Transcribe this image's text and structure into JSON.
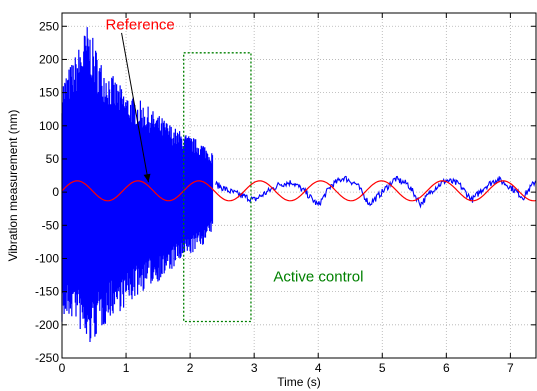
{
  "chart_data": {
    "type": "line",
    "xlabel": "Time (s)",
    "ylabel": "Vibration measurement (nm)",
    "xlim": [
      0,
      7.4
    ],
    "ylim": [
      -250,
      270
    ],
    "xticks": [
      0,
      1,
      2,
      3,
      4,
      5,
      6,
      7
    ],
    "yticks": [
      -250,
      -200,
      -150,
      -100,
      -50,
      0,
      50,
      100,
      150,
      200,
      250
    ],
    "grid": true,
    "colors": {
      "measurement": "#0000ff",
      "reference": "#ff0000",
      "active_control": "#008000"
    },
    "series": [
      {
        "name": "",
        "kind": "measurement",
        "envelope_before_control": {
          "x": [
            0,
            0.2,
            0.4,
            0.6,
            0.8,
            1.0,
            1.2,
            1.4,
            1.6,
            1.8,
            2.0,
            2.2,
            2.35
          ],
          "upper": [
            170,
            205,
            255,
            200,
            175,
            150,
            140,
            125,
            110,
            95,
            85,
            75,
            60
          ],
          "lower": [
            -200,
            -190,
            -240,
            -210,
            -185,
            -175,
            -155,
            -140,
            -130,
            -110,
            -95,
            -80,
            -60
          ]
        },
        "after_control": {
          "x": [
            2.4,
            2.6,
            2.8,
            3.0,
            3.2,
            3.4,
            3.6,
            3.8,
            4.0,
            4.2,
            4.4,
            4.6,
            4.8,
            5.0,
            5.2,
            5.4,
            5.6,
            5.8,
            6.0,
            6.2,
            6.4,
            6.6,
            6.8,
            7.0,
            7.2,
            7.4
          ],
          "y": [
            12,
            2,
            -5,
            -12,
            0,
            12,
            15,
            0,
            -20,
            10,
            22,
            12,
            -18,
            0,
            20,
            12,
            -18,
            5,
            18,
            12,
            -12,
            8,
            20,
            8,
            -8,
            18
          ]
        }
      },
      {
        "name": "",
        "kind": "reference",
        "amplitude": 15,
        "period": 0.95,
        "offset": 2
      }
    ],
    "annotations": [
      {
        "text": "Reference",
        "color": "#ff0000",
        "arrow_from": [
          0.93,
          240
        ],
        "arrow_to": [
          1.35,
          15
        ]
      },
      {
        "text": "Active control",
        "color": "#008000",
        "box_x": [
          1.9,
          2.95
        ],
        "box_y": [
          -195,
          210
        ]
      }
    ]
  }
}
